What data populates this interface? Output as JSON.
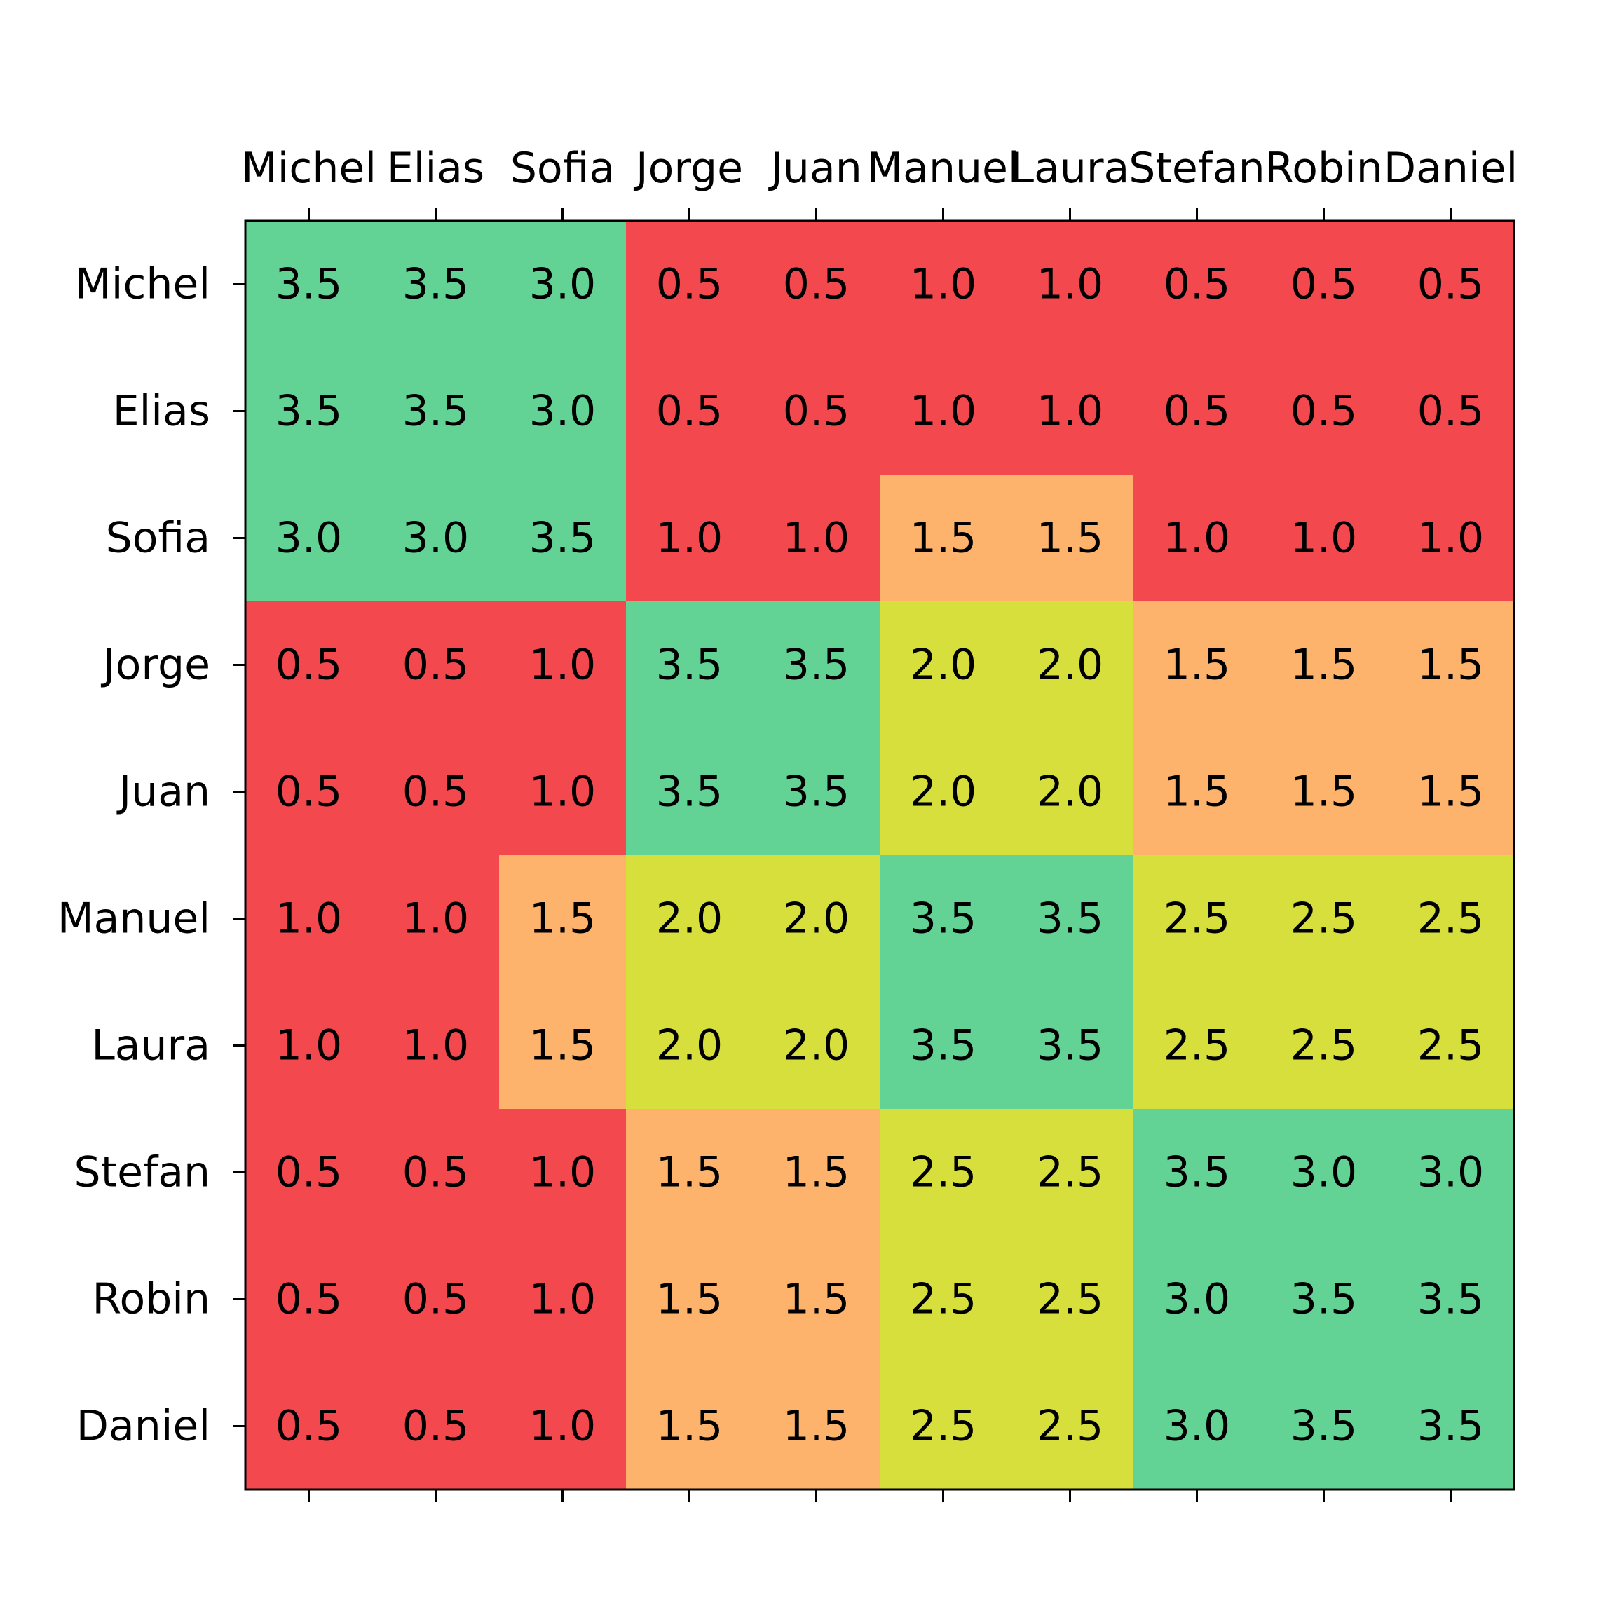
{
  "chart_data": {
    "type": "heatmap",
    "x_categories": [
      "Michel",
      "Elias",
      "Sofia",
      "Jorge",
      "Juan",
      "Manuel",
      "Laura",
      "Stefan",
      "Robin",
      "Daniel"
    ],
    "y_categories": [
      "Michel",
      "Elias",
      "Sofia",
      "Jorge",
      "Juan",
      "Manuel",
      "Laura",
      "Stefan",
      "Robin",
      "Daniel"
    ],
    "values": [
      [
        3.5,
        3.5,
        3.0,
        0.5,
        0.5,
        1.0,
        1.0,
        0.5,
        0.5,
        0.5
      ],
      [
        3.5,
        3.5,
        3.0,
        0.5,
        0.5,
        1.0,
        1.0,
        0.5,
        0.5,
        0.5
      ],
      [
        3.0,
        3.0,
        3.5,
        1.0,
        1.0,
        1.5,
        1.5,
        1.0,
        1.0,
        1.0
      ],
      [
        0.5,
        0.5,
        1.0,
        3.5,
        3.5,
        2.0,
        2.0,
        1.5,
        1.5,
        1.5
      ],
      [
        0.5,
        0.5,
        1.0,
        3.5,
        3.5,
        2.0,
        2.0,
        1.5,
        1.5,
        1.5
      ],
      [
        1.0,
        1.0,
        1.5,
        2.0,
        2.0,
        3.5,
        3.5,
        2.5,
        2.5,
        2.5
      ],
      [
        1.0,
        1.0,
        1.5,
        2.0,
        2.0,
        3.5,
        3.5,
        2.5,
        2.5,
        2.5
      ],
      [
        0.5,
        0.5,
        1.0,
        1.5,
        1.5,
        2.5,
        2.5,
        3.5,
        3.0,
        3.0
      ],
      [
        0.5,
        0.5,
        1.0,
        1.5,
        1.5,
        2.5,
        2.5,
        3.0,
        3.5,
        3.5
      ],
      [
        0.5,
        0.5,
        1.0,
        1.5,
        1.5,
        2.5,
        2.5,
        3.0,
        3.5,
        3.5
      ]
    ],
    "cell_labels": [
      [
        "3.5",
        "3.5",
        "3.0",
        "0.5",
        "0.5",
        "1.0",
        "1.0",
        "0.5",
        "0.5",
        "0.5"
      ],
      [
        "3.5",
        "3.5",
        "3.0",
        "0.5",
        "0.5",
        "1.0",
        "1.0",
        "0.5",
        "0.5",
        "0.5"
      ],
      [
        "3.0",
        "3.0",
        "3.5",
        "1.0",
        "1.0",
        "1.5",
        "1.5",
        "1.0",
        "1.0",
        "1.0"
      ],
      [
        "0.5",
        "0.5",
        "1.0",
        "3.5",
        "3.5",
        "2.0",
        "2.0",
        "1.5",
        "1.5",
        "1.5"
      ],
      [
        "0.5",
        "0.5",
        "1.0",
        "3.5",
        "3.5",
        "2.0",
        "2.0",
        "1.5",
        "1.5",
        "1.5"
      ],
      [
        "1.0",
        "1.0",
        "1.5",
        "2.0",
        "2.0",
        "3.5",
        "3.5",
        "2.5",
        "2.5",
        "2.5"
      ],
      [
        "1.0",
        "1.0",
        "1.5",
        "2.0",
        "2.0",
        "3.5",
        "3.5",
        "2.5",
        "2.5",
        "2.5"
      ],
      [
        "0.5",
        "0.5",
        "1.0",
        "1.5",
        "1.5",
        "2.5",
        "2.5",
        "3.5",
        "3.0",
        "3.0"
      ],
      [
        "0.5",
        "0.5",
        "1.0",
        "1.5",
        "1.5",
        "2.5",
        "2.5",
        "3.0",
        "3.5",
        "3.5"
      ],
      [
        "0.5",
        "0.5",
        "1.0",
        "1.5",
        "1.5",
        "2.5",
        "2.5",
        "3.0",
        "3.5",
        "3.5"
      ]
    ],
    "color_bins": [
      {
        "min": 0.0,
        "max": 1.0,
        "color": "#f2484e"
      },
      {
        "min": 1.5,
        "max": 1.5,
        "color": "#fdb36b"
      },
      {
        "min": 2.0,
        "max": 2.5,
        "color": "#d6df3c"
      },
      {
        "min": 3.0,
        "max": 3.5,
        "color": "#62d394"
      }
    ],
    "x_tick_position": "top",
    "title": "",
    "xlabel": "",
    "ylabel": "",
    "grid": false
  }
}
